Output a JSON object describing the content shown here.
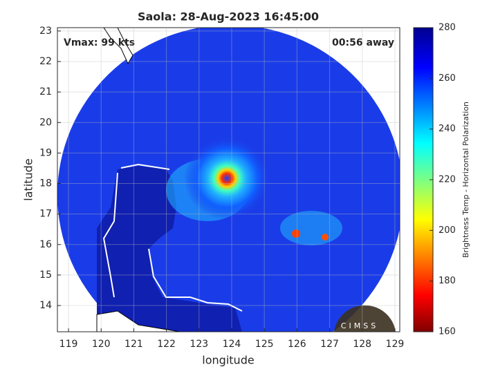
{
  "chart_data": {
    "type": "image",
    "title": "Saola: 28-Aug-2023 16:45:00",
    "annotations": [
      "Vmax: 99 kts",
      "00:56 away"
    ],
    "x_label": "longitude",
    "y_label": "latitude",
    "xlim": [
      118.66,
      129.15
    ],
    "xticks": [
      119,
      120,
      121,
      122,
      123,
      124,
      125,
      126,
      127,
      128,
      129
    ],
    "ylim": [
      13.14,
      23.11
    ],
    "yticks": [
      14,
      15,
      16,
      17,
      18,
      19,
      20,
      21,
      22,
      23
    ],
    "grid": true,
    "colorbar": {
      "label": "Brightness Temp - Horizontal Polarization",
      "lim": [
        160,
        280
      ],
      "ticks": [
        160,
        180,
        200,
        220,
        240,
        260,
        280
      ]
    },
    "logo": "CIMSS"
  }
}
